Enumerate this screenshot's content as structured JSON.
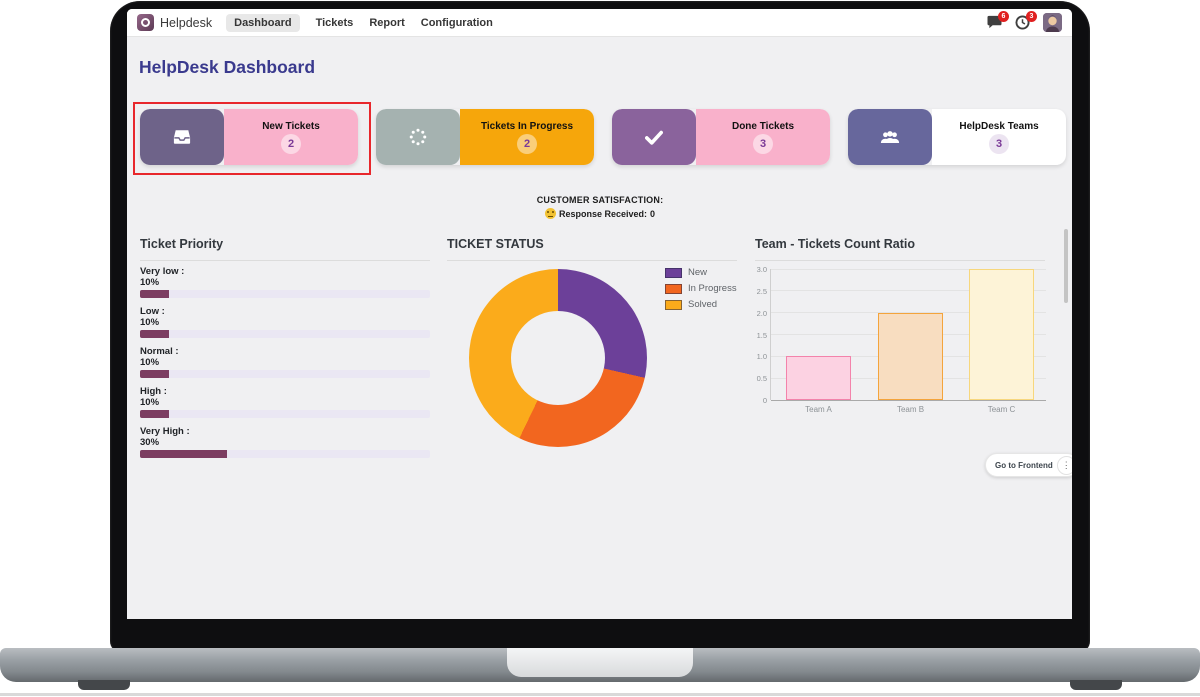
{
  "navbar": {
    "app_name": "Helpdesk",
    "menu": [
      {
        "label": "Dashboard",
        "active": true
      },
      {
        "label": "Tickets",
        "active": false
      },
      {
        "label": "Report",
        "active": false
      },
      {
        "label": "Configuration",
        "active": false
      }
    ],
    "messages_badge": "6",
    "activities_badge": "3"
  },
  "page": {
    "title": "HelpDesk Dashboard"
  },
  "kpi_cards": [
    {
      "label": "New Tickets",
      "count": "2",
      "icon": "inbox-icon",
      "accent_color": "#6e6389",
      "body_color": "#f9b1cb",
      "count_bg": "rgba(255,255,255,0.5)",
      "selected": true
    },
    {
      "label": "Tickets In Progress",
      "count": "2",
      "icon": "spinner-icon",
      "accent_color": "#a5b2b0",
      "body_color": "#f6a60b",
      "count_bg": "rgba(255,255,255,0.45)",
      "selected": false
    },
    {
      "label": "Done Tickets",
      "count": "3",
      "icon": "check-icon",
      "accent_color": "#8a639c",
      "body_color": "#f9b1cb",
      "count_bg": "rgba(255,255,255,0.5)",
      "selected": false
    },
    {
      "label": "HelpDesk Teams",
      "count": "3",
      "icon": "users-icon",
      "accent_color": "#67679c",
      "body_color": "#ffffff",
      "count_bg": "#ece4f1",
      "selected": false
    }
  ],
  "satisfaction": {
    "title": "CUSTOMER SATISFACTION:",
    "response_label": "Response Received:",
    "response_value": "0"
  },
  "priority_panel": {
    "title": "Ticket Priority",
    "items": [
      {
        "label": "Very low :",
        "pct": "10%",
        "value": 10
      },
      {
        "label": "Low :",
        "pct": "10%",
        "value": 10
      },
      {
        "label": "Normal :",
        "pct": "10%",
        "value": 10
      },
      {
        "label": "High :",
        "pct": "10%",
        "value": 10
      },
      {
        "label": "Very High :",
        "pct": "30%",
        "value": 30
      }
    ],
    "bar_color": "#7c3d61",
    "track_color": "#eae7f3"
  },
  "chart_data": [
    {
      "type": "pie",
      "donut": true,
      "title": "TICKET STATUS",
      "labels": [
        "New",
        "In Progress",
        "Solved"
      ],
      "values": [
        2,
        2,
        3
      ],
      "colors": [
        "#6c4099",
        "#f2661f",
        "#fbab1b"
      ],
      "legend_position": "right"
    },
    {
      "type": "bar",
      "title": "Team - Tickets Count Ratio",
      "categories": [
        "Team A",
        "Team B",
        "Team C"
      ],
      "values": [
        1,
        2,
        3
      ],
      "ylim": [
        0,
        3
      ],
      "ytick_step": 0.5,
      "grid": true,
      "bar_fill": [
        "#fcd2e2",
        "#f8ddc0",
        "#fdf3d7"
      ],
      "bar_border": [
        "#f383ab",
        "#f4a43c",
        "#f7d77d"
      ]
    }
  ],
  "footer": {
    "go_frontend_label": "Go to Frontend",
    "kebab_glyph": "⋮"
  }
}
